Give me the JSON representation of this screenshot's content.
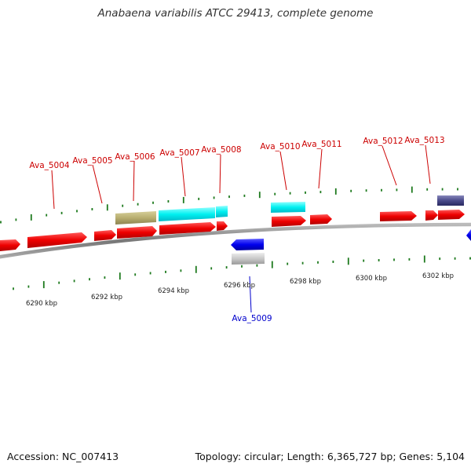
{
  "title": "Anabaena variabilis ATCC 29413, complete genome",
  "footer": {
    "accession": "Accession: NC_007413",
    "summary": "Topology: circular; Length: 6,365,727 bp; Genes: 5,104"
  },
  "colors": {
    "forward_cds": "#ff0000",
    "reverse_cds": "#0000ff",
    "label_forward": "#cc0000",
    "label_reverse": "#0000cc",
    "tick": "#1e7a1e",
    "backbone": "#888888"
  },
  "scale_labels": [
    "6290 kbp",
    "6292 kbp",
    "6294 kbp",
    "6296 kbp",
    "6298 kbp",
    "6300 kbp",
    "6302 kbp"
  ],
  "gene_labels": [
    {
      "name": "Ava_5004",
      "strand": "forward"
    },
    {
      "name": "Ava_5005",
      "strand": "forward"
    },
    {
      "name": "Ava_5006",
      "strand": "forward"
    },
    {
      "name": "Ava_5007",
      "strand": "forward"
    },
    {
      "name": "Ava_5008",
      "strand": "forward"
    },
    {
      "name": "Ava_5010",
      "strand": "forward"
    },
    {
      "name": "Ava_5011",
      "strand": "forward"
    },
    {
      "name": "Ava_5012",
      "strand": "forward"
    },
    {
      "name": "Ava_5013",
      "strand": "forward"
    },
    {
      "name": "Ava_5009",
      "strand": "reverse"
    }
  ]
}
